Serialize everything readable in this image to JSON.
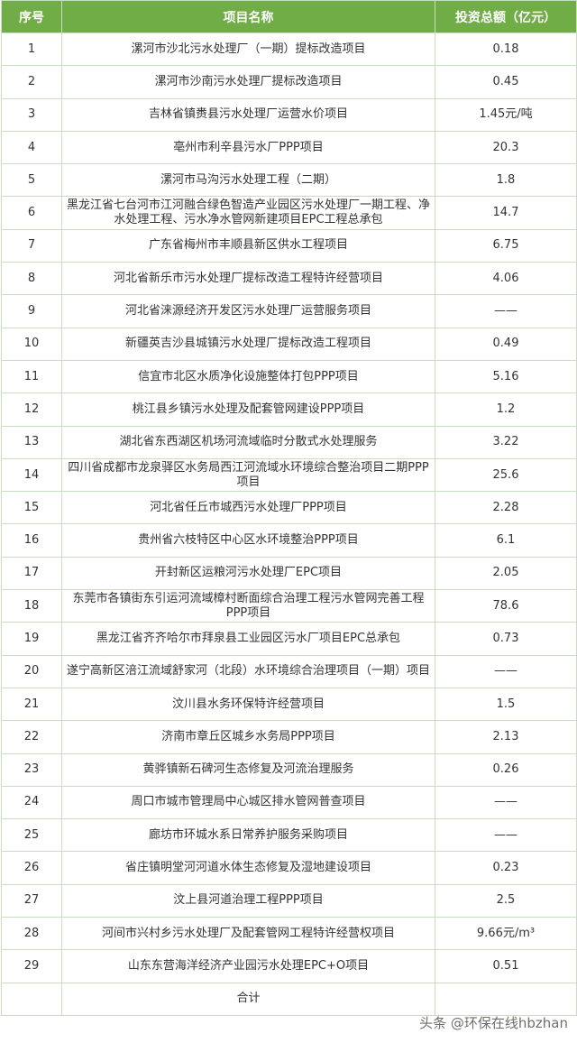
{
  "header": {
    "index": "序号",
    "name": "项目名称",
    "amount": "投资总额（亿元）"
  },
  "rows": [
    {
      "no": "1",
      "name": "漯河市沙北污水处理厂（一期）提标改造项目",
      "amount": "0.18"
    },
    {
      "no": "2",
      "name": "漯河市沙南污水处理厂提标改造项目",
      "amount": "0.45"
    },
    {
      "no": "3",
      "name": "吉林省镇赉县污水处理厂运营水价项目",
      "amount": "1.45元/吨"
    },
    {
      "no": "4",
      "name": "亳州市利辛县污水厂PPP项目",
      "amount": "20.3"
    },
    {
      "no": "5",
      "name": "漯河市马沟污水处理工程（二期）",
      "amount": "1.8"
    },
    {
      "no": "6",
      "name": "黑龙江省七台河市江河融合绿色智造产业园区污水处理厂一期工程、净水处理工程、污水净水管网新建项目EPC工程总承包",
      "amount": "14.7"
    },
    {
      "no": "7",
      "name": "广东省梅州市丰顺县新区供水工程项目",
      "amount": "6.75"
    },
    {
      "no": "8",
      "name": "河北省新乐市污水处理厂提标改造工程特许经营项目",
      "amount": "4.06"
    },
    {
      "no": "9",
      "name": "河北省涞源经济开发区污水处理厂运营服务项目",
      "amount": "——"
    },
    {
      "no": "10",
      "name": "新疆英吉沙县城镇污水处理厂提标改造工程项目",
      "amount": "0.49"
    },
    {
      "no": "11",
      "name": "信宜市北区水质净化设施整体打包PPP项目",
      "amount": "5.16"
    },
    {
      "no": "12",
      "name": "桃江县乡镇污水处理及配套管网建设PPP项目",
      "amount": "1.2"
    },
    {
      "no": "13",
      "name": "湖北省东西湖区机场河流域临时分散式水处理服务",
      "amount": "3.22"
    },
    {
      "no": "14",
      "name": "四川省成都市龙泉驿区水务局西江河流域水环境综合整治项目二期PPP项目",
      "amount": "25.6"
    },
    {
      "no": "15",
      "name": "河北省任丘市城西污水处理厂PPP项目",
      "amount": "2.28"
    },
    {
      "no": "16",
      "name": "贵州省六枝特区中心区水环境整治PPP项目",
      "amount": "6.1"
    },
    {
      "no": "17",
      "name": "开封新区运粮河污水处理厂EPC项目",
      "amount": "2.05"
    },
    {
      "no": "18",
      "name": "东莞市各镇街东引运河流域樟村断面综合治理工程污水管网完善工程PPP项目",
      "amount": "78.6"
    },
    {
      "no": "19",
      "name": "黑龙江省齐齐哈尔市拜泉县工业园区污水厂项目EPC总承包",
      "amount": "0.73"
    },
    {
      "no": "20",
      "name": "遂宁高新区涪江流域舒家河（北段）水环境综合治理项目（一期）项目",
      "amount": "——"
    },
    {
      "no": "21",
      "name": "汶川县水务环保特许经营项目",
      "amount": "1.5"
    },
    {
      "no": "22",
      "name": "济南市章丘区城乡水务局PPP项目",
      "amount": "2.13"
    },
    {
      "no": "23",
      "name": "黄骅镇新石碑河生态修复及河流治理服务",
      "amount": "0.26"
    },
    {
      "no": "24",
      "name": "周口市城市管理局中心城区排水管网普查项目",
      "amount": "——"
    },
    {
      "no": "25",
      "name": "廊坊市环城水系日常养护服务采购项目",
      "amount": "——"
    },
    {
      "no": "26",
      "name": "省庄镇明堂河河道水体生态修复及湿地建设项目",
      "amount": "0.23"
    },
    {
      "no": "27",
      "name": "汶上县河道治理工程PPP项目",
      "amount": "2.5"
    },
    {
      "no": "28",
      "name": "河间市兴村乡污水处理厂及配套管网工程特许经营权项目",
      "amount": "9.66元/m³"
    },
    {
      "no": "29",
      "name": "山东东营海洋经济产业园污水处理EPC+O项目",
      "amount": "0.51"
    }
  ],
  "total": {
    "label": "合计"
  },
  "watermark": "头条 @环保在线hbzhan",
  "colors": {
    "header_bg": "#70ad47",
    "grid": "#c9dfc0"
  }
}
